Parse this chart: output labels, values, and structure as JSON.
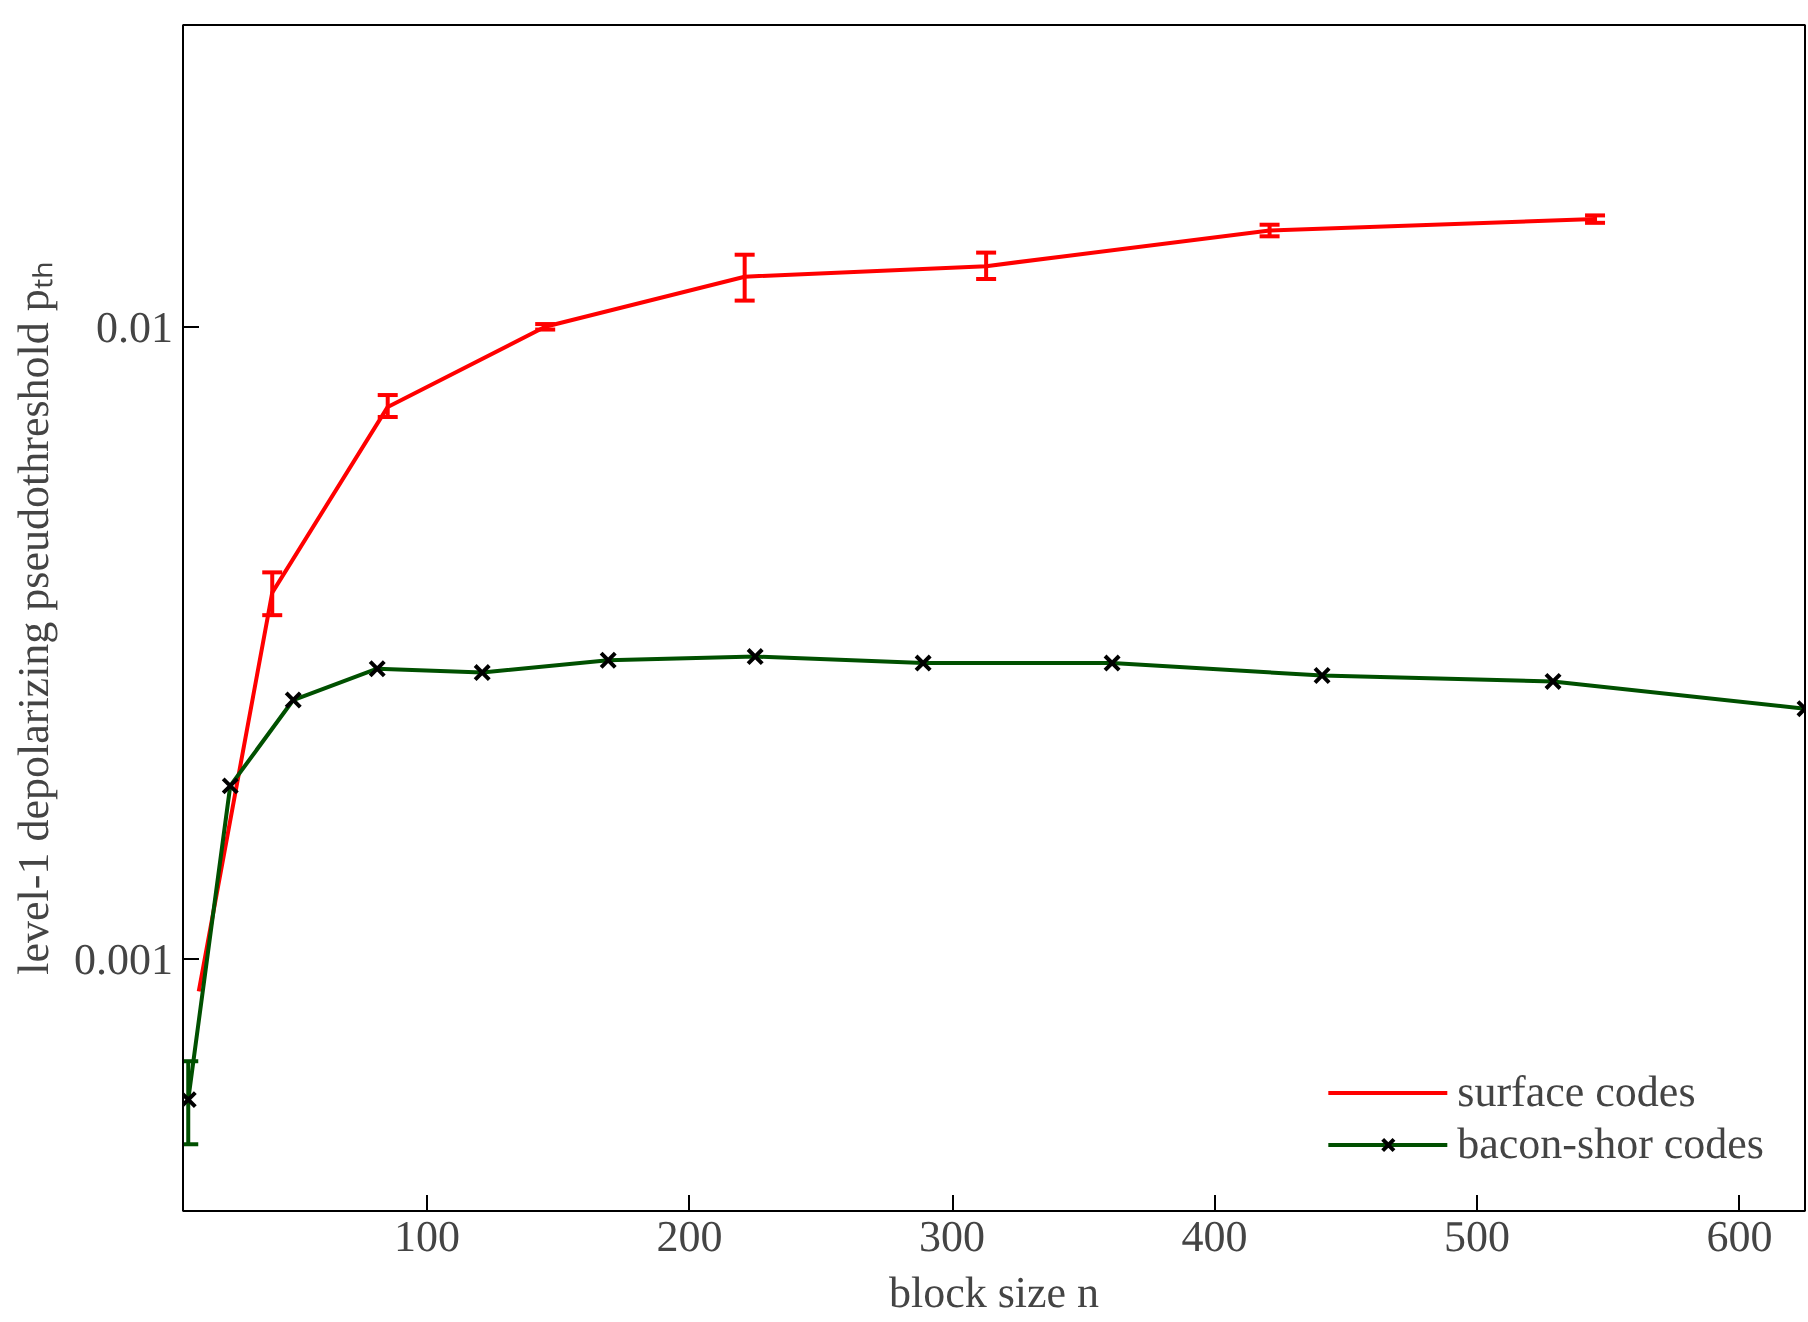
{
  "chart_data": {
    "type": "line",
    "xlabel": "block size n",
    "ylabel": "level-1 depolarizing pseudothreshold pₜₕ",
    "log": "y",
    "xlim": [
      7,
      625
    ],
    "xticks": [
      100,
      200,
      300,
      400,
      500,
      600
    ],
    "ylim": [
      0.0004,
      0.03
    ],
    "yticks": [
      0.001,
      0.01
    ],
    "grid": false,
    "legend": "bottom right",
    "series": [
      {
        "name": "surface codes",
        "color": "#ff0000",
        "marker": "none",
        "x": [
          13,
          41,
          85,
          145,
          221,
          313,
          421,
          545
        ],
        "values": [
          0.00089,
          0.0038,
          0.00747,
          0.01,
          0.012,
          0.01247,
          0.0142,
          0.0148
        ],
        "errors": [
          null,
          [
            0.0035,
            0.00409
          ],
          [
            0.0072,
            0.0078
          ],
          0.0001,
          [
            0.011,
            0.013
          ],
          [
            0.0119,
            0.0131
          ],
          0.0003,
          0.0002
        ]
      },
      {
        "name": "bacon-shor codes",
        "color": "#005000",
        "marker": "cross",
        "x": [
          9,
          25,
          49,
          81,
          121,
          169,
          225,
          289,
          361,
          441,
          529,
          625
        ],
        "values": [
          0.0006,
          0.00188,
          0.00257,
          0.00288,
          0.00284,
          0.00297,
          0.00301,
          0.00294,
          0.00294,
          0.00281,
          0.00275,
          0.00249
        ],
        "errors": [
          [
            0.00051,
            0.00069
          ],
          null,
          null,
          null,
          null,
          null,
          null,
          null,
          null,
          null,
          null,
          null
        ]
      }
    ]
  }
}
